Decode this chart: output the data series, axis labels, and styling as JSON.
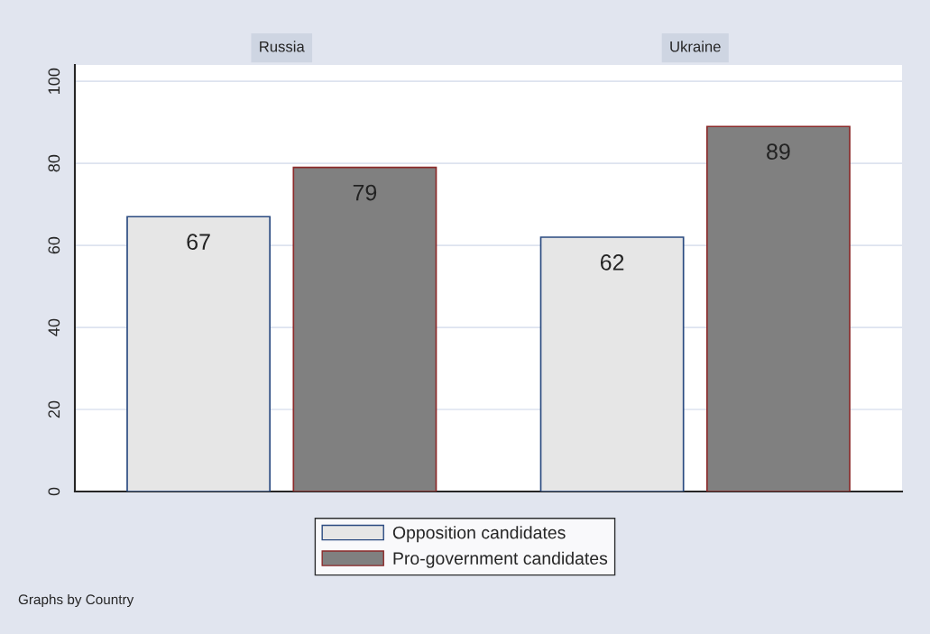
{
  "chart_data": {
    "type": "bar",
    "categories": [
      "Russia",
      "Ukraine"
    ],
    "ylim": [
      0,
      104
    ],
    "yticks": [
      0,
      20,
      40,
      60,
      80,
      100
    ],
    "grid": "y",
    "legend": "bottom",
    "data_labels": true,
    "series": [
      {
        "name": "Opposition candidates",
        "color": "#e6e6e6",
        "values": [
          67,
          62
        ]
      },
      {
        "name": "Pro-government candidates",
        "color": "#808080",
        "values": [
          79,
          89
        ]
      }
    ],
    "annotations": [
      "Graphs by Country"
    ]
  }
}
